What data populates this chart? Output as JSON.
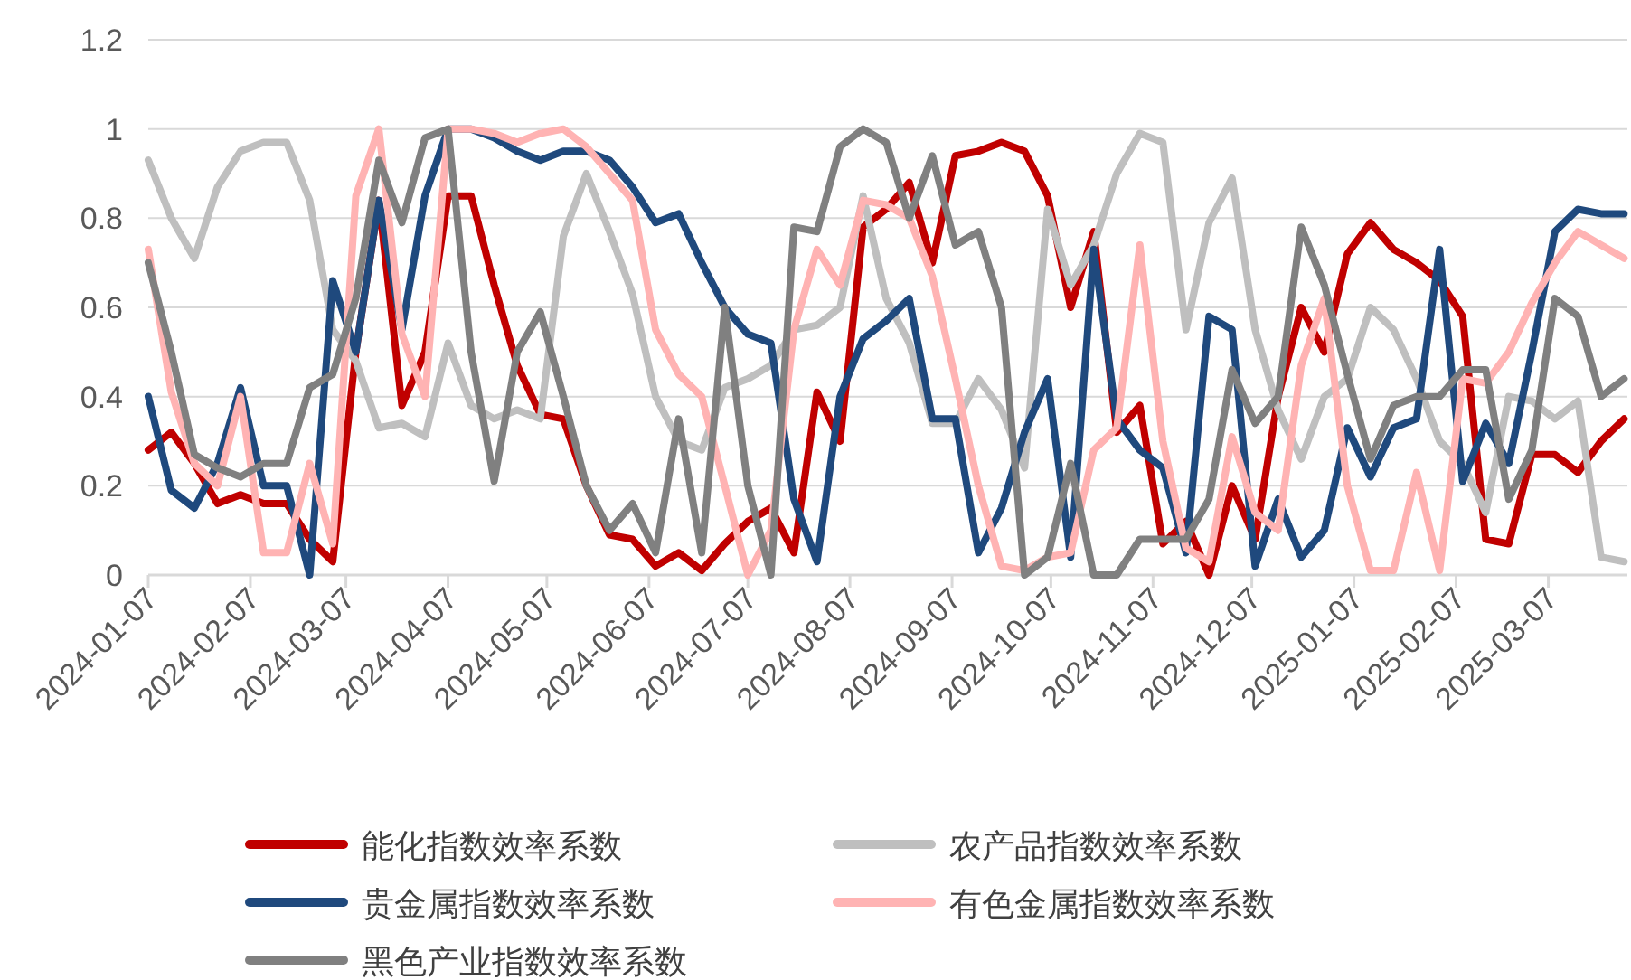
{
  "chart_data": {
    "type": "line",
    "line_style": "solid",
    "marker": "none",
    "grid": "y",
    "legend": "bottom",
    "x": [
      "2024-01-07",
      "2024-01-14",
      "2024-01-21",
      "2024-01-28",
      "2024-02-04",
      "2024-02-11",
      "2024-02-18",
      "2024-02-25",
      "2024-03-03",
      "2024-03-10",
      "2024-03-17",
      "2024-03-24",
      "2024-03-31",
      "2024-04-07",
      "2024-04-14",
      "2024-04-21",
      "2024-04-28",
      "2024-05-05",
      "2024-05-12",
      "2024-05-19",
      "2024-05-26",
      "2024-06-02",
      "2024-06-09",
      "2024-06-16",
      "2024-06-23",
      "2024-06-30",
      "2024-07-07",
      "2024-07-14",
      "2024-07-21",
      "2024-07-28",
      "2024-08-04",
      "2024-08-11",
      "2024-08-18",
      "2024-08-25",
      "2024-09-01",
      "2024-09-08",
      "2024-09-15",
      "2024-09-22",
      "2024-09-29",
      "2024-10-06",
      "2024-10-13",
      "2024-10-20",
      "2024-10-27",
      "2024-11-03",
      "2024-11-10",
      "2024-11-17",
      "2024-11-24",
      "2024-12-01",
      "2024-12-08",
      "2024-12-15",
      "2024-12-22",
      "2024-12-29",
      "2025-01-05",
      "2025-01-12",
      "2025-01-19",
      "2025-01-26",
      "2025-02-02",
      "2025-02-09",
      "2025-02-16",
      "2025-02-23",
      "2025-03-02",
      "2025-03-09",
      "2025-03-16",
      "2025-03-23",
      "2025-03-30"
    ],
    "xlim": [
      "2024-01-07",
      "2025-03-31"
    ],
    "xticks": [
      "2024-01-07",
      "2024-02-07",
      "2024-03-07",
      "2024-04-07",
      "2024-05-07",
      "2024-06-07",
      "2024-07-07",
      "2024-08-07",
      "2024-09-07",
      "2024-10-07",
      "2024-11-07",
      "2024-12-07",
      "2025-01-07",
      "2025-02-07",
      "2025-03-07"
    ],
    "ylim": [
      0,
      1.2
    ],
    "yticks": [
      0,
      0.2,
      0.4,
      0.6,
      0.8,
      1,
      1.2
    ],
    "series": [
      {
        "name": "能化指数效率系数",
        "color": "#c00000",
        "values": [
          0.28,
          0.32,
          0.25,
          0.16,
          0.18,
          0.16,
          0.16,
          0.08,
          0.03,
          0.5,
          0.84,
          0.38,
          0.5,
          0.85,
          0.85,
          0.65,
          0.47,
          0.36,
          0.35,
          0.2,
          0.09,
          0.08,
          0.02,
          0.05,
          0.01,
          0.07,
          0.12,
          0.15,
          0.05,
          0.41,
          0.3,
          0.78,
          0.82,
          0.88,
          0.7,
          0.94,
          0.95,
          0.97,
          0.95,
          0.85,
          0.6,
          0.77,
          0.32,
          0.38,
          0.07,
          0.12,
          0.0,
          0.2,
          0.08,
          0.4,
          0.6,
          0.5,
          0.72,
          0.79,
          0.73,
          0.7,
          0.66,
          0.58,
          0.08,
          0.07,
          0.27,
          0.27,
          0.23,
          0.3,
          0.35
        ]
      },
      {
        "name": "农产品指数效率系数",
        "color": "#bfbfbf",
        "values": [
          0.93,
          0.8,
          0.71,
          0.87,
          0.95,
          0.97,
          0.97,
          0.84,
          0.55,
          0.48,
          0.33,
          0.34,
          0.31,
          0.52,
          0.38,
          0.35,
          0.37,
          0.35,
          0.76,
          0.9,
          0.77,
          0.63,
          0.4,
          0.3,
          0.28,
          0.42,
          0.44,
          0.47,
          0.55,
          0.56,
          0.6,
          0.85,
          0.62,
          0.52,
          0.34,
          0.34,
          0.44,
          0.37,
          0.24,
          0.82,
          0.65,
          0.74,
          0.9,
          0.99,
          0.97,
          0.55,
          0.79,
          0.89,
          0.55,
          0.37,
          0.26,
          0.4,
          0.44,
          0.6,
          0.55,
          0.44,
          0.3,
          0.25,
          0.14,
          0.4,
          0.39,
          0.35,
          0.39,
          0.04,
          0.03
        ]
      },
      {
        "name": "贵金属指数效率系数",
        "color": "#1f497d",
        "values": [
          0.4,
          0.19,
          0.15,
          0.25,
          0.42,
          0.2,
          0.2,
          0.0,
          0.66,
          0.5,
          0.84,
          0.55,
          0.85,
          1.0,
          1.0,
          0.98,
          0.95,
          0.93,
          0.95,
          0.95,
          0.93,
          0.87,
          0.79,
          0.81,
          0.7,
          0.6,
          0.54,
          0.52,
          0.17,
          0.03,
          0.4,
          0.53,
          0.57,
          0.62,
          0.35,
          0.35,
          0.05,
          0.15,
          0.32,
          0.44,
          0.04,
          0.73,
          0.35,
          0.28,
          0.24,
          0.05,
          0.58,
          0.55,
          0.02,
          0.17,
          0.04,
          0.1,
          0.33,
          0.22,
          0.33,
          0.35,
          0.73,
          0.21,
          0.34,
          0.25,
          0.5,
          0.77,
          0.82,
          0.81,
          0.81
        ]
      },
      {
        "name": "有色金属指数效率系数",
        "color": "#ffb3b3",
        "values": [
          0.73,
          0.41,
          0.25,
          0.2,
          0.4,
          0.05,
          0.05,
          0.25,
          0.07,
          0.85,
          1.0,
          0.54,
          0.4,
          1.0,
          1.0,
          0.99,
          0.97,
          0.99,
          1.0,
          0.96,
          0.9,
          0.84,
          0.55,
          0.45,
          0.4,
          0.2,
          0.0,
          0.1,
          0.55,
          0.73,
          0.65,
          0.84,
          0.83,
          0.8,
          0.67,
          0.44,
          0.2,
          0.02,
          0.01,
          0.04,
          0.05,
          0.28,
          0.33,
          0.74,
          0.3,
          0.06,
          0.03,
          0.31,
          0.14,
          0.1,
          0.47,
          0.62,
          0.2,
          0.01,
          0.01,
          0.23,
          0.01,
          0.44,
          0.43,
          0.5,
          0.61,
          0.7,
          0.77,
          0.74,
          0.71
        ]
      },
      {
        "name": "黑色产业指数效率系数",
        "color": "#808080",
        "values": [
          0.7,
          0.5,
          0.27,
          0.24,
          0.22,
          0.25,
          0.25,
          0.42,
          0.45,
          0.62,
          0.93,
          0.79,
          0.98,
          1.0,
          0.5,
          0.21,
          0.5,
          0.59,
          0.4,
          0.2,
          0.1,
          0.16,
          0.05,
          0.35,
          0.05,
          0.6,
          0.2,
          0.0,
          0.78,
          0.77,
          0.96,
          1.0,
          0.97,
          0.8,
          0.94,
          0.74,
          0.77,
          0.6,
          0.0,
          0.04,
          0.25,
          0.0,
          0.0,
          0.08,
          0.08,
          0.08,
          0.17,
          0.46,
          0.34,
          0.4,
          0.78,
          0.65,
          0.45,
          0.26,
          0.38,
          0.4,
          0.4,
          0.46,
          0.46,
          0.17,
          0.28,
          0.62,
          0.58,
          0.4,
          0.44
        ]
      }
    ]
  }
}
